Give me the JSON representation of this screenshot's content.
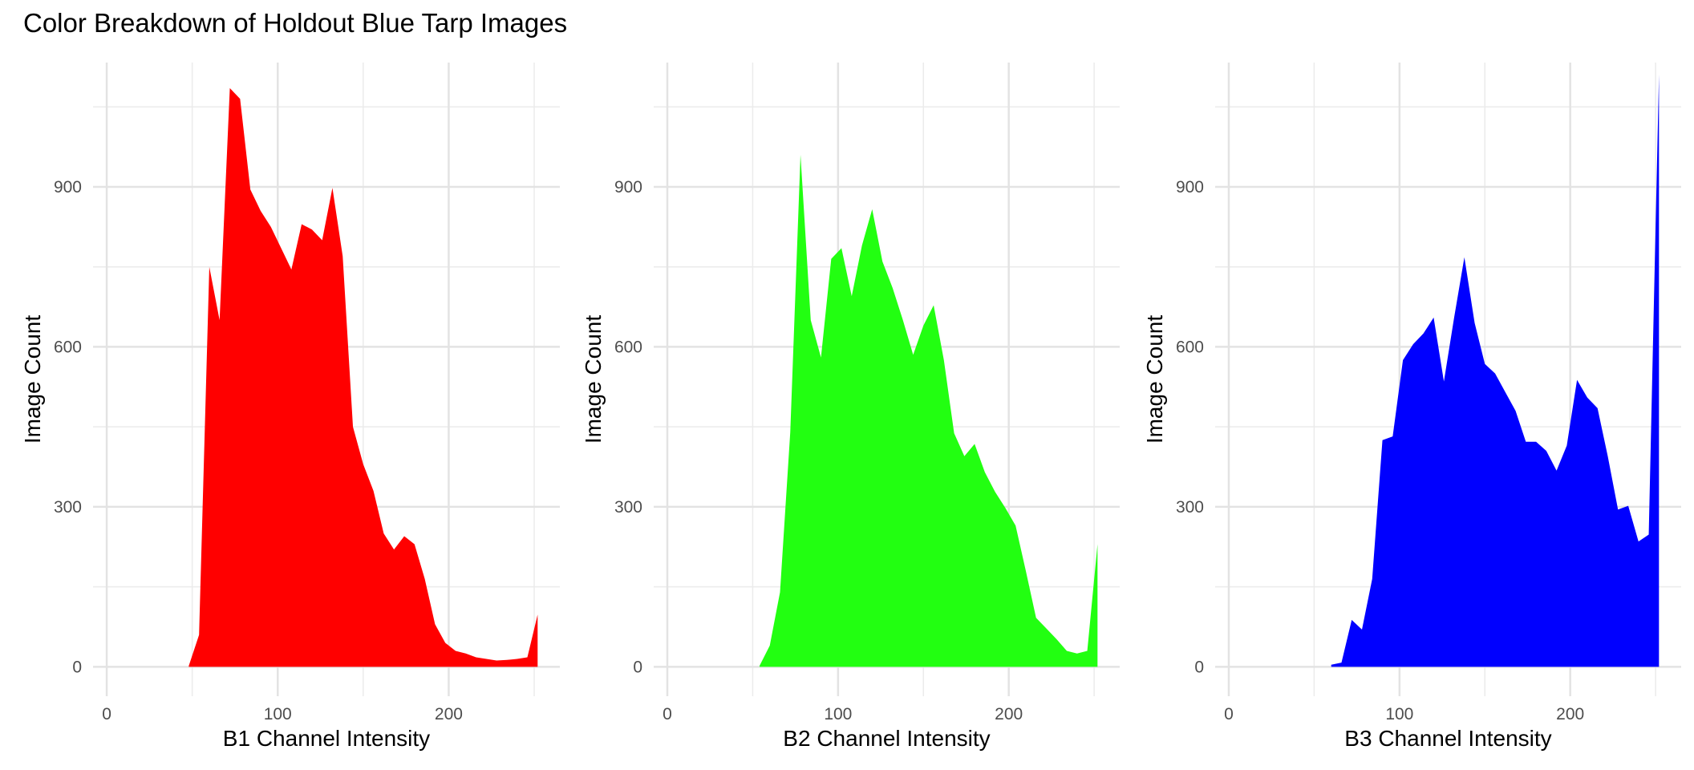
{
  "title": "Color Breakdown of Holdout Blue Tarp Images",
  "chart_data": [
    {
      "type": "area",
      "xlabel": "B1 Channel Intensity",
      "ylabel": "Image Count",
      "color": "#ff0000",
      "xlim": [
        -8,
        265
      ],
      "ylim": [
        -55,
        1133
      ],
      "x_ticks": [
        0,
        100,
        200
      ],
      "y_ticks": [
        0,
        300,
        600,
        900
      ],
      "grid": true,
      "x": [
        48,
        54,
        60,
        66,
        72,
        78,
        84,
        90,
        96,
        102,
        108,
        114,
        120,
        126,
        132,
        138,
        144,
        150,
        156,
        162,
        168,
        174,
        180,
        186,
        192,
        198,
        204,
        210,
        216,
        222,
        228,
        234,
        240,
        246,
        252
      ],
      "values": [
        2,
        60,
        750,
        650,
        1085,
        1065,
        895,
        855,
        825,
        785,
        745,
        830,
        820,
        800,
        898,
        770,
        450,
        380,
        330,
        250,
        220,
        245,
        230,
        165,
        80,
        45,
        30,
        25,
        18,
        15,
        12,
        13,
        15,
        18,
        98
      ]
    },
    {
      "type": "area",
      "xlabel": "B2 Channel Intensity",
      "ylabel": "Image Count",
      "color": "#22ff11",
      "xlim": [
        -8,
        265
      ],
      "ylim": [
        -55,
        1133
      ],
      "x_ticks": [
        0,
        100,
        200
      ],
      "y_ticks": [
        0,
        300,
        600,
        900
      ],
      "grid": true,
      "x": [
        54,
        60,
        66,
        72,
        78,
        84,
        90,
        96,
        102,
        108,
        114,
        120,
        126,
        132,
        138,
        144,
        150,
        156,
        162,
        168,
        174,
        180,
        186,
        192,
        198,
        204,
        210,
        216,
        222,
        228,
        234,
        240,
        246,
        252
      ],
      "values": [
        2,
        40,
        140,
        440,
        960,
        650,
        580,
        765,
        785,
        695,
        790,
        858,
        760,
        710,
        650,
        585,
        640,
        678,
        575,
        438,
        395,
        418,
        365,
        328,
        298,
        265,
        180,
        92,
        72,
        52,
        30,
        25,
        30,
        230
      ]
    },
    {
      "type": "area",
      "xlabel": "B3 Channel Intensity",
      "ylabel": "Image Count",
      "color": "#0000ff",
      "xlim": [
        -8,
        265
      ],
      "ylim": [
        -55,
        1133
      ],
      "x_ticks": [
        0,
        100,
        200
      ],
      "y_ticks": [
        0,
        300,
        600,
        900
      ],
      "grid": true,
      "x": [
        60,
        66,
        72,
        78,
        84,
        90,
        96,
        102,
        108,
        114,
        120,
        126,
        132,
        138,
        144,
        150,
        156,
        162,
        168,
        174,
        180,
        186,
        192,
        198,
        204,
        210,
        216,
        222,
        228,
        234,
        240,
        246,
        252
      ],
      "values": [
        4,
        8,
        88,
        70,
        165,
        425,
        432,
        575,
        605,
        625,
        655,
        535,
        655,
        768,
        645,
        568,
        550,
        515,
        480,
        422,
        422,
        405,
        368,
        415,
        538,
        505,
        485,
        395,
        295,
        302,
        235,
        248,
        1110
      ]
    }
  ]
}
